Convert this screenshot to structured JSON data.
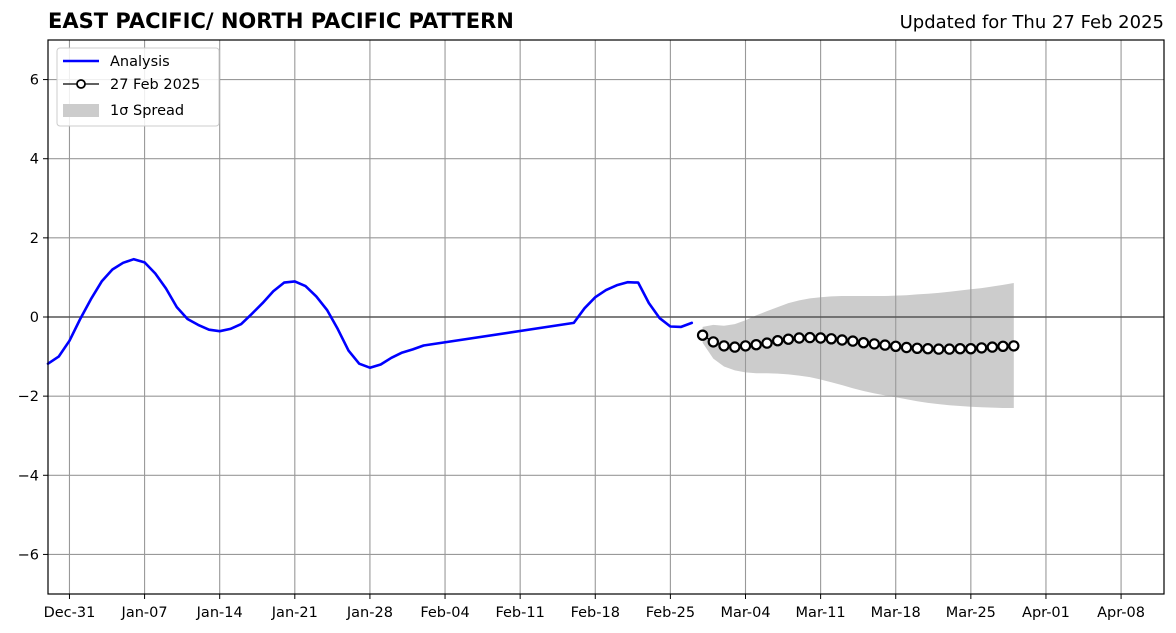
{
  "header": {
    "title": "EAST PACIFIC/ NORTH PACIFIC PATTERN",
    "updated": "Updated for Thu 27 Feb 2025"
  },
  "colors": {
    "analysis": "#0000ff",
    "forecast_marker_edge": "#000000",
    "forecast_marker_fill": "#ffffff",
    "spread": "#cccccc",
    "grid": "#999999",
    "zero_line": "#555555"
  },
  "legend": {
    "placement": "top-left",
    "items": [
      {
        "label": "Analysis",
        "style": "line",
        "color": "#0000ff"
      },
      {
        "label": "27 Feb 2025",
        "style": "line-marker",
        "color": "#000000"
      },
      {
        "label": "1σ Spread",
        "style": "patch",
        "color": "#cccccc"
      }
    ]
  },
  "chart_data": {
    "type": "line",
    "title": "EAST PACIFIC/ NORTH PACIFIC PATTERN",
    "xlabel": "",
    "ylabel": "",
    "grid": true,
    "legend_position": "top-left",
    "x_axis": {
      "type": "date",
      "range": [
        "2024-12-29",
        "2025-04-12"
      ],
      "ticks": [
        {
          "date": "2024-12-31",
          "label": "Dec-31"
        },
        {
          "date": "2025-01-07",
          "label": "Jan-07"
        },
        {
          "date": "2025-01-14",
          "label": "Jan-14"
        },
        {
          "date": "2025-01-21",
          "label": "Jan-21"
        },
        {
          "date": "2025-01-28",
          "label": "Jan-28"
        },
        {
          "date": "2025-02-04",
          "label": "Feb-04"
        },
        {
          "date": "2025-02-11",
          "label": "Feb-11"
        },
        {
          "date": "2025-02-18",
          "label": "Feb-18"
        },
        {
          "date": "2025-02-25",
          "label": "Feb-25"
        },
        {
          "date": "2025-03-04",
          "label": "Mar-04"
        },
        {
          "date": "2025-03-11",
          "label": "Mar-11"
        },
        {
          "date": "2025-03-18",
          "label": "Mar-18"
        },
        {
          "date": "2025-03-25",
          "label": "Mar-25"
        },
        {
          "date": "2025-04-01",
          "label": "Apr-01"
        },
        {
          "date": "2025-04-08",
          "label": "Apr-08"
        }
      ]
    },
    "y_axis": {
      "range": [
        -7,
        7
      ],
      "ticks": [
        {
          "value": -6,
          "label": "−6"
        },
        {
          "value": -4,
          "label": "−4"
        },
        {
          "value": -2,
          "label": "−2"
        },
        {
          "value": 0,
          "label": "0"
        },
        {
          "value": 2,
          "label": "2"
        },
        {
          "value": 4,
          "label": "4"
        },
        {
          "value": 6,
          "label": "6"
        }
      ]
    },
    "series": [
      {
        "name": "Analysis",
        "style": "line",
        "color": "#0000ff",
        "points": [
          [
            "2024-12-29",
            -1.18
          ],
          [
            "2024-12-30",
            -1.0
          ],
          [
            "2024-12-31",
            -0.6
          ],
          [
            "2025-01-01",
            -0.05
          ],
          [
            "2025-01-02",
            0.45
          ],
          [
            "2025-01-03",
            0.9
          ],
          [
            "2025-01-04",
            1.2
          ],
          [
            "2025-01-05",
            1.37
          ],
          [
            "2025-01-06",
            1.46
          ],
          [
            "2025-01-07",
            1.38
          ],
          [
            "2025-01-08",
            1.1
          ],
          [
            "2025-01-09",
            0.72
          ],
          [
            "2025-01-10",
            0.25
          ],
          [
            "2025-01-11",
            -0.05
          ],
          [
            "2025-01-12",
            -0.2
          ],
          [
            "2025-01-13",
            -0.32
          ],
          [
            "2025-01-14",
            -0.36
          ],
          [
            "2025-01-15",
            -0.3
          ],
          [
            "2025-01-16",
            -0.18
          ],
          [
            "2025-01-17",
            0.08
          ],
          [
            "2025-01-18",
            0.35
          ],
          [
            "2025-01-19",
            0.65
          ],
          [
            "2025-01-20",
            0.87
          ],
          [
            "2025-01-21",
            0.9
          ],
          [
            "2025-01-22",
            0.78
          ],
          [
            "2025-01-23",
            0.52
          ],
          [
            "2025-01-24",
            0.18
          ],
          [
            "2025-01-25",
            -0.3
          ],
          [
            "2025-01-26",
            -0.85
          ],
          [
            "2025-01-27",
            -1.18
          ],
          [
            "2025-01-28",
            -1.28
          ],
          [
            "2025-01-29",
            -1.2
          ],
          [
            "2025-01-30",
            -1.03
          ],
          [
            "2025-01-31",
            -0.9
          ],
          [
            "2025-02-01",
            -0.82
          ],
          [
            "2025-02-02",
            -0.72
          ],
          [
            "2025-02-16",
            -0.15
          ],
          [
            "2025-02-17",
            0.22
          ],
          [
            "2025-02-18",
            0.5
          ],
          [
            "2025-02-19",
            0.68
          ],
          [
            "2025-02-20",
            0.8
          ],
          [
            "2025-02-21",
            0.88
          ],
          [
            "2025-02-22",
            0.87
          ],
          [
            "2025-02-23",
            0.35
          ],
          [
            "2025-02-24",
            -0.03
          ],
          [
            "2025-02-25",
            -0.24
          ],
          [
            "2025-02-26",
            -0.25
          ],
          [
            "2025-02-27",
            -0.15
          ]
        ]
      },
      {
        "name": "27 Feb 2025",
        "style": "line-marker",
        "color": "#000000",
        "marker_fill": "#ffffff",
        "points": [
          [
            "2025-02-28",
            -0.46
          ],
          [
            "2025-03-01",
            -0.63
          ],
          [
            "2025-03-02",
            -0.73
          ],
          [
            "2025-03-03",
            -0.76
          ],
          [
            "2025-03-04",
            -0.73
          ],
          [
            "2025-03-05",
            -0.7
          ],
          [
            "2025-03-06",
            -0.66
          ],
          [
            "2025-03-07",
            -0.6
          ],
          [
            "2025-03-08",
            -0.56
          ],
          [
            "2025-03-09",
            -0.53
          ],
          [
            "2025-03-10",
            -0.52
          ],
          [
            "2025-03-11",
            -0.53
          ],
          [
            "2025-03-12",
            -0.55
          ],
          [
            "2025-03-13",
            -0.58
          ],
          [
            "2025-03-14",
            -0.61
          ],
          [
            "2025-03-15",
            -0.65
          ],
          [
            "2025-03-16",
            -0.68
          ],
          [
            "2025-03-17",
            -0.71
          ],
          [
            "2025-03-18",
            -0.74
          ],
          [
            "2025-03-19",
            -0.77
          ],
          [
            "2025-03-20",
            -0.79
          ],
          [
            "2025-03-21",
            -0.8
          ],
          [
            "2025-03-22",
            -0.81
          ],
          [
            "2025-03-23",
            -0.81
          ],
          [
            "2025-03-24",
            -0.8
          ],
          [
            "2025-03-25",
            -0.8
          ],
          [
            "2025-03-26",
            -0.78
          ],
          [
            "2025-03-27",
            -0.76
          ],
          [
            "2025-03-28",
            -0.74
          ],
          [
            "2025-03-29",
            -0.73
          ]
        ]
      }
    ],
    "spread": {
      "name": "1σ Spread",
      "color": "#cccccc",
      "points": [
        [
          "2025-02-28",
          -0.25,
          -0.65
        ],
        [
          "2025-03-01",
          -0.2,
          -1.05
        ],
        [
          "2025-03-02",
          -0.22,
          -1.25
        ],
        [
          "2025-03-03",
          -0.18,
          -1.35
        ],
        [
          "2025-03-04",
          -0.08,
          -1.4
        ],
        [
          "2025-03-05",
          0.04,
          -1.42
        ],
        [
          "2025-03-06",
          0.15,
          -1.42
        ],
        [
          "2025-03-07",
          0.25,
          -1.43
        ],
        [
          "2025-03-08",
          0.35,
          -1.45
        ],
        [
          "2025-03-09",
          0.42,
          -1.48
        ],
        [
          "2025-03-10",
          0.47,
          -1.52
        ],
        [
          "2025-03-11",
          0.5,
          -1.58
        ],
        [
          "2025-03-12",
          0.52,
          -1.65
        ],
        [
          "2025-03-13",
          0.53,
          -1.72
        ],
        [
          "2025-03-14",
          0.53,
          -1.8
        ],
        [
          "2025-03-15",
          0.53,
          -1.87
        ],
        [
          "2025-03-16",
          0.53,
          -1.93
        ],
        [
          "2025-03-17",
          0.53,
          -1.98
        ],
        [
          "2025-03-18",
          0.54,
          -2.03
        ],
        [
          "2025-03-19",
          0.55,
          -2.08
        ],
        [
          "2025-03-20",
          0.57,
          -2.13
        ],
        [
          "2025-03-21",
          0.59,
          -2.17
        ],
        [
          "2025-03-22",
          0.61,
          -2.2
        ],
        [
          "2025-03-23",
          0.64,
          -2.23
        ],
        [
          "2025-03-24",
          0.67,
          -2.25
        ],
        [
          "2025-03-25",
          0.7,
          -2.27
        ],
        [
          "2025-03-26",
          0.73,
          -2.28
        ],
        [
          "2025-03-27",
          0.77,
          -2.29
        ],
        [
          "2025-03-28",
          0.81,
          -2.3
        ],
        [
          "2025-03-29",
          0.86,
          -2.3
        ]
      ]
    }
  }
}
